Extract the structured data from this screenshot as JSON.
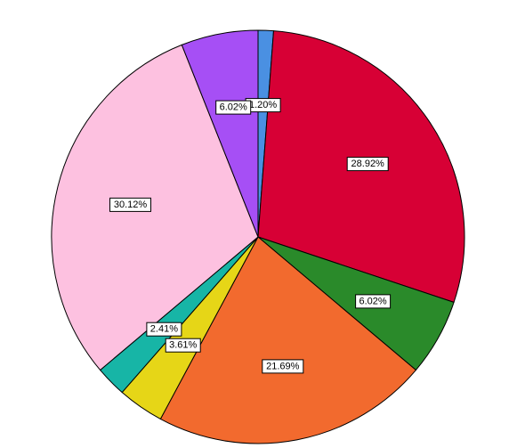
{
  "chart_data": {
    "type": "pie",
    "start": "12 o'clock",
    "direction": "clockwise",
    "slices": [
      {
        "label": "1.20%",
        "value": 1.2,
        "color": "#4a90e2"
      },
      {
        "label": "28.92%",
        "value": 28.92,
        "color": "#d70035"
      },
      {
        "label": "6.02%",
        "value": 6.02,
        "color": "#2a8a2a"
      },
      {
        "label": "21.69%",
        "value": 21.69,
        "color": "#f26a2e"
      },
      {
        "label": "3.61%",
        "value": 3.61,
        "color": "#e6d617"
      },
      {
        "label": "2.41%",
        "value": 2.41,
        "color": "#17b5a6"
      },
      {
        "label": "30.12%",
        "value": 30.12,
        "color": "#fdc1e0"
      },
      {
        "label": "6.02%",
        "value": 6.02,
        "color": "#a64ff5"
      }
    ]
  }
}
